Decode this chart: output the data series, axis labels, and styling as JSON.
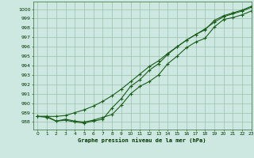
{
  "title": "Graphe pression niveau de la mer (hPa)",
  "bg_color": "#cce8e0",
  "grid_color": "#99bbaa",
  "line_color": "#1a5e1a",
  "xlim": [
    -0.5,
    23
  ],
  "ylim": [
    987.2,
    1000.8
  ],
  "yticks": [
    988,
    989,
    990,
    991,
    992,
    993,
    994,
    995,
    996,
    997,
    998,
    999,
    1000
  ],
  "xticks": [
    0,
    1,
    2,
    3,
    4,
    5,
    6,
    7,
    8,
    9,
    10,
    11,
    12,
    13,
    14,
    15,
    16,
    17,
    18,
    19,
    20,
    21,
    22,
    23
  ],
  "s1_x": [
    0,
    1,
    2,
    3,
    4,
    5,
    6,
    7,
    8,
    9,
    10,
    11,
    12,
    13,
    14,
    15,
    16,
    17,
    18,
    19,
    20,
    21,
    22,
    23
  ],
  "s1_y": [
    988.6,
    988.6,
    988.1,
    988.3,
    988.1,
    988.0,
    988.2,
    988.5,
    988.8,
    989.8,
    991.0,
    991.8,
    992.3,
    993.0,
    994.2,
    995.0,
    995.9,
    996.5,
    996.9,
    998.1,
    998.9,
    999.1,
    999.4,
    999.8
  ],
  "s2_x": [
    0,
    2,
    3,
    4,
    5,
    6,
    7,
    8,
    9,
    10,
    11,
    12,
    13,
    14,
    15,
    16,
    17,
    18,
    19,
    20,
    21,
    22,
    23
  ],
  "s2_y": [
    988.6,
    988.6,
    988.7,
    989.0,
    989.3,
    989.7,
    990.2,
    990.8,
    991.5,
    992.3,
    993.1,
    993.9,
    994.5,
    995.3,
    996.0,
    996.7,
    997.3,
    997.9,
    998.6,
    999.2,
    999.5,
    999.8,
    1000.2
  ],
  "s3_x": [
    0,
    1,
    2,
    3,
    4,
    5,
    6,
    7,
    8,
    9,
    10,
    11,
    12,
    13,
    14,
    15,
    16,
    17,
    18,
    19,
    20,
    21,
    22,
    23
  ],
  "s3_y": [
    988.6,
    988.5,
    988.1,
    988.2,
    988.0,
    987.9,
    988.1,
    988.3,
    989.5,
    990.5,
    991.8,
    992.5,
    993.5,
    994.2,
    995.2,
    996.0,
    996.7,
    997.3,
    997.8,
    998.8,
    999.3,
    999.6,
    999.9,
    1000.3
  ]
}
